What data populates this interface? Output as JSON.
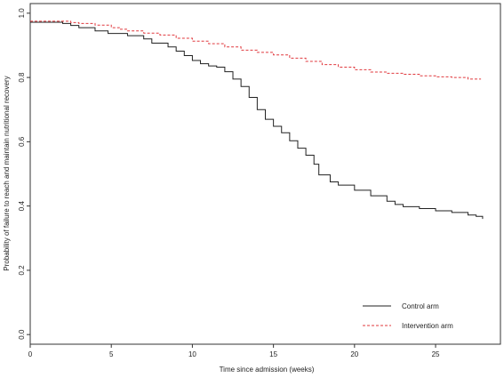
{
  "chart_data": {
    "type": "line",
    "title": "",
    "xlabel": "Time since admission (weeks)",
    "ylabel": "Probability of failure to reach and maintain nutritional recovery",
    "xlim": [
      0,
      29
    ],
    "ylim": [
      -0.03,
      1.03
    ],
    "x_ticks": [
      0,
      5,
      10,
      15,
      20,
      25
    ],
    "y_ticks": [
      0.0,
      0.2,
      0.4,
      0.6,
      0.8,
      1.0
    ],
    "x_tick_labels": [
      "0",
      "5",
      "10",
      "15",
      "20",
      "25"
    ],
    "y_tick_labels": [
      "0.0",
      "0.2",
      "0.4",
      "0.6",
      "0.8",
      "1.0"
    ],
    "grid": false,
    "legend_position": "bottom-right",
    "series": [
      {
        "name": "Control arm",
        "color": "#222222",
        "line_style": "solid",
        "step": true,
        "points": [
          [
            0,
            0.972
          ],
          [
            1.2,
            0.972
          ],
          [
            2.0,
            0.968
          ],
          [
            2.5,
            0.962
          ],
          [
            3.0,
            0.955
          ],
          [
            4.0,
            0.945
          ],
          [
            4.8,
            0.937
          ],
          [
            6.0,
            0.93
          ],
          [
            7.0,
            0.92
          ],
          [
            7.5,
            0.907
          ],
          [
            8.5,
            0.895
          ],
          [
            9.0,
            0.882
          ],
          [
            9.5,
            0.868
          ],
          [
            10.0,
            0.853
          ],
          [
            10.5,
            0.843
          ],
          [
            11.0,
            0.836
          ],
          [
            11.5,
            0.832
          ],
          [
            12.0,
            0.818
          ],
          [
            12.5,
            0.795
          ],
          [
            13.0,
            0.772
          ],
          [
            13.5,
            0.738
          ],
          [
            14.0,
            0.7
          ],
          [
            14.5,
            0.67
          ],
          [
            15.0,
            0.648
          ],
          [
            15.5,
            0.628
          ],
          [
            16.0,
            0.603
          ],
          [
            16.5,
            0.58
          ],
          [
            17.0,
            0.558
          ],
          [
            17.5,
            0.53
          ],
          [
            17.8,
            0.497
          ],
          [
            18.5,
            0.475
          ],
          [
            19.0,
            0.465
          ],
          [
            20.0,
            0.449
          ],
          [
            21.0,
            0.432
          ],
          [
            22.0,
            0.415
          ],
          [
            22.5,
            0.405
          ],
          [
            23.0,
            0.398
          ],
          [
            24.0,
            0.392
          ],
          [
            25.0,
            0.385
          ],
          [
            26.0,
            0.38
          ],
          [
            27.0,
            0.372
          ],
          [
            27.5,
            0.368
          ],
          [
            27.9,
            0.36
          ]
        ]
      },
      {
        "name": "Intervention arm",
        "color": "#e0393e",
        "line_style": "dashed",
        "step": true,
        "points": [
          [
            0,
            0.975
          ],
          [
            2.0,
            0.975
          ],
          [
            2.5,
            0.971
          ],
          [
            3.0,
            0.968
          ],
          [
            4.0,
            0.963
          ],
          [
            5.0,
            0.955
          ],
          [
            5.5,
            0.95
          ],
          [
            6.0,
            0.945
          ],
          [
            7.0,
            0.938
          ],
          [
            8.0,
            0.932
          ],
          [
            9.0,
            0.922
          ],
          [
            10.0,
            0.913
          ],
          [
            11.0,
            0.905
          ],
          [
            12.0,
            0.895
          ],
          [
            13.0,
            0.885
          ],
          [
            14.0,
            0.878
          ],
          [
            15.0,
            0.87
          ],
          [
            16.0,
            0.86
          ],
          [
            17.0,
            0.85
          ],
          [
            18.0,
            0.84
          ],
          [
            19.0,
            0.832
          ],
          [
            20.0,
            0.824
          ],
          [
            21.0,
            0.817
          ],
          [
            22.0,
            0.813
          ],
          [
            23.0,
            0.81
          ],
          [
            24.0,
            0.805
          ],
          [
            25.0,
            0.802
          ],
          [
            26.0,
            0.8
          ],
          [
            27.0,
            0.795
          ],
          [
            27.8,
            0.795
          ]
        ]
      }
    ]
  }
}
